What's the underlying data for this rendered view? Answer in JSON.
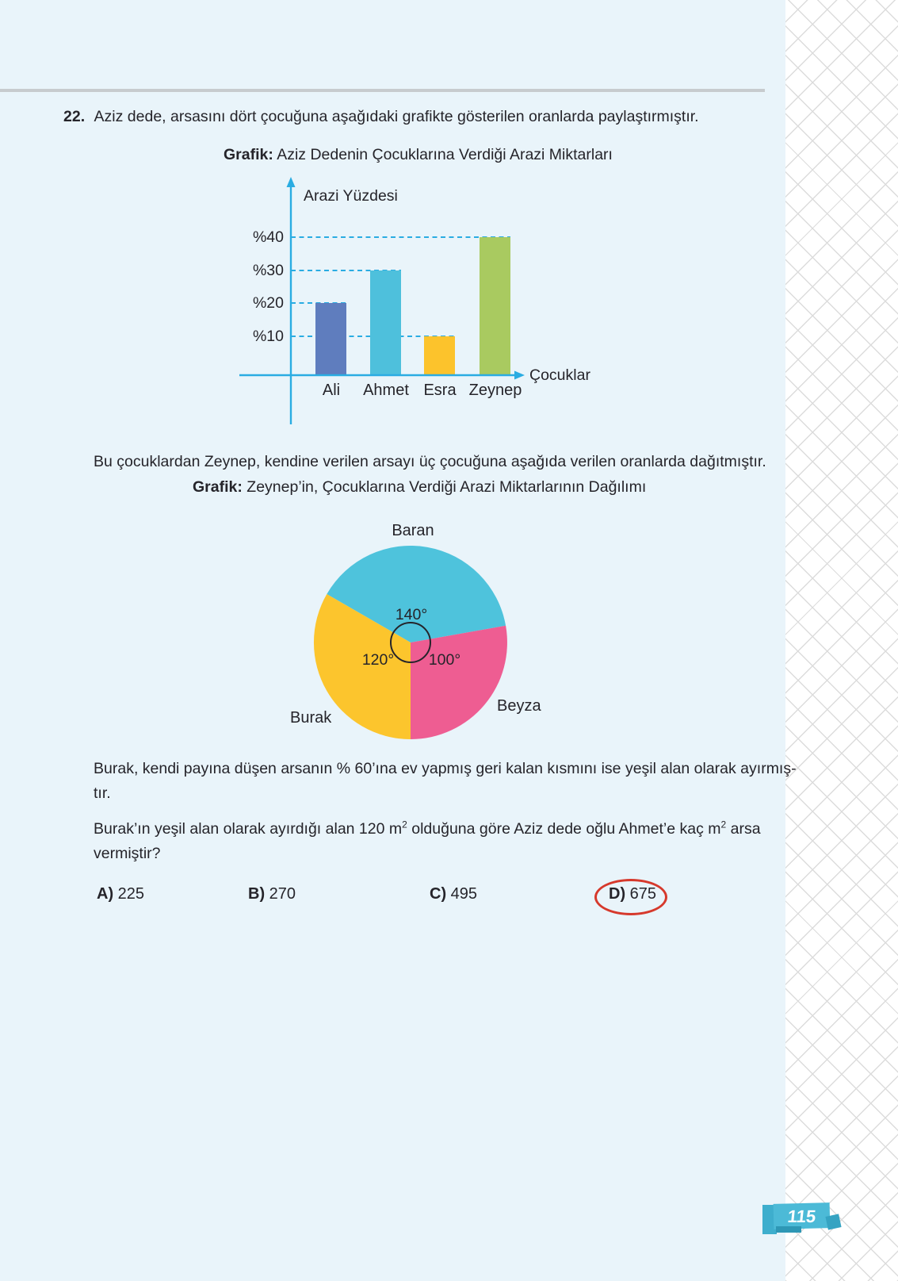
{
  "page": {
    "number": "115",
    "background_color": "#E9F4FA",
    "divider_color": "#C7CBCE",
    "accent_cyan": "#2AACE2",
    "text_color": "#25242A",
    "answer_circle_color": "#D6392C",
    "badge_color": "#4CBAD7"
  },
  "question": {
    "number": "22.",
    "intro": "Aziz dede, arsasını dört çocuğuna aşağıdaki grafikte gösterilen oranlarda paylaştırmıştır.",
    "between_text": "Bu çocuklardan Zeynep, kendine verilen arsayı üç çocuğuna aşağıda verilen oranlarda dağıtmıştır.",
    "burak_line1": "Burak, kendi payına düşen arsanın % 60’ına ev yapmış geri kalan kısmını ise yeşil alan olarak ayırmış-",
    "burak_line2": "tır.",
    "final_part1": "Burak’ın yeşil alan olarak ayırdığı alan 120 m",
    "final_sup1": "2",
    "final_part2": " olduğuna göre Aziz dede oğlu Ahmet’e kaç m",
    "final_sup2": "2",
    "final_part3": " arsa",
    "final_line2": "vermiştir?"
  },
  "chart_data": [
    {
      "type": "bar",
      "title": "Grafik: Aziz Dedenin Çocuklarına Verdiği Arazi Miktarları",
      "title_bold": "Grafik:",
      "title_rest": "Aziz Dedenin Çocuklarına Verdiği Arazi Miktarları",
      "ylabel": "Arazi Yüzdesi",
      "xlabel": "Çocuklar",
      "categories": [
        "Ali",
        "Ahmet",
        "Esra",
        "Zeynep"
      ],
      "values": [
        20,
        30,
        10,
        40
      ],
      "tick_labels": [
        "%40",
        "%30",
        "%20",
        "%10"
      ],
      "ticks": [
        40,
        30,
        20,
        10
      ],
      "ylim": [
        0,
        45
      ],
      "grid": "dashed-cyan",
      "bar_colors": [
        "#5F7DBE",
        "#4EC0DC",
        "#FCC32C",
        "#A9CA60"
      ]
    },
    {
      "type": "pie",
      "title": "Grafik: Zeynep’in, Çocuklarına Verdiği Arazi Miktarlarının Dağılımı",
      "title_bold": "Grafik:",
      "title_rest": "Zeynep’in, Çocuklarına Verdiği Arazi Miktarlarının Dağılımı",
      "slices": [
        {
          "label": "Baran",
          "angle_deg": 140,
          "angle_label": "140°",
          "color": "#4EC3DC"
        },
        {
          "label": "Beyza",
          "angle_deg": 100,
          "angle_label": "100°",
          "color": "#EE5D92"
        },
        {
          "label": "Burak",
          "angle_deg": 120,
          "angle_label": "120°",
          "color": "#FCC52D"
        }
      ],
      "center_angle_marker": "circle"
    }
  ],
  "answers": {
    "options": [
      {
        "label": "A)",
        "value": "225"
      },
      {
        "label": "B)",
        "value": "270"
      },
      {
        "label": "C)",
        "value": "495"
      },
      {
        "label": "D)",
        "value": "675"
      }
    ],
    "circled": "D) 675"
  }
}
